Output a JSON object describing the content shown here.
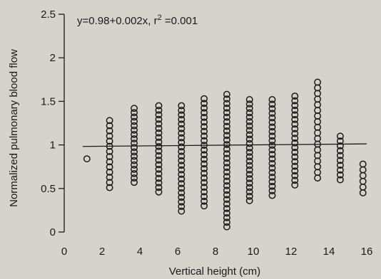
{
  "chart_data": {
    "type": "scatter",
    "annotation_prefix": "y=0.98+0.002x, r",
    "annotation_sup": "2",
    "annotation_suffix": " =0.001",
    "xlabel": "Vertical height (cm)",
    "ylabel": "Normalized pulmonary blood flow",
    "xlim": [
      0,
      16
    ],
    "ylim": [
      0,
      2.5
    ],
    "x_ticks": [
      0,
      2,
      4,
      6,
      8,
      10,
      12,
      14,
      16
    ],
    "x_tick_labels": [
      "0",
      "2",
      "4",
      "6",
      "8",
      "10",
      "12",
      "14",
      "16"
    ],
    "y_ticks": [
      0,
      0.5,
      1,
      1.5,
      2,
      2.5
    ],
    "y_tick_labels": [
      "0",
      "0.5",
      "1",
      "1.5",
      "2",
      "2.5"
    ],
    "regression": {
      "intercept": 0.98,
      "slope": 0.002,
      "x_range": [
        1.2,
        16
      ]
    },
    "marker": "open-circle",
    "grid": false,
    "columns": [
      {
        "x": 1.2,
        "min": 0.84,
        "max": 0.86,
        "n": 1
      },
      {
        "x": 2.4,
        "min": 0.51,
        "max": 1.28,
        "n": 14
      },
      {
        "x": 3.7,
        "min": 0.57,
        "max": 1.42,
        "n": 18
      },
      {
        "x": 5.0,
        "min": 0.46,
        "max": 1.45,
        "n": 20
      },
      {
        "x": 6.2,
        "min": 0.24,
        "max": 1.45,
        "n": 24
      },
      {
        "x": 7.4,
        "min": 0.3,
        "max": 1.53,
        "n": 24
      },
      {
        "x": 8.6,
        "min": 0.06,
        "max": 1.58,
        "n": 30
      },
      {
        "x": 9.8,
        "min": 0.36,
        "max": 1.52,
        "n": 24
      },
      {
        "x": 11.0,
        "min": 0.42,
        "max": 1.52,
        "n": 22
      },
      {
        "x": 12.2,
        "min": 0.54,
        "max": 1.56,
        "n": 20
      },
      {
        "x": 13.4,
        "min": 0.62,
        "max": 1.72,
        "n": 18
      },
      {
        "x": 14.6,
        "min": 0.6,
        "max": 1.1,
        "n": 10
      },
      {
        "x": 15.8,
        "min": 0.45,
        "max": 0.78,
        "n": 6
      }
    ],
    "colors": {
      "marker": "#1a1a1a",
      "line": "#1a1a1a",
      "axis": "#1a1a1a",
      "background": "#d6d3cd"
    }
  }
}
